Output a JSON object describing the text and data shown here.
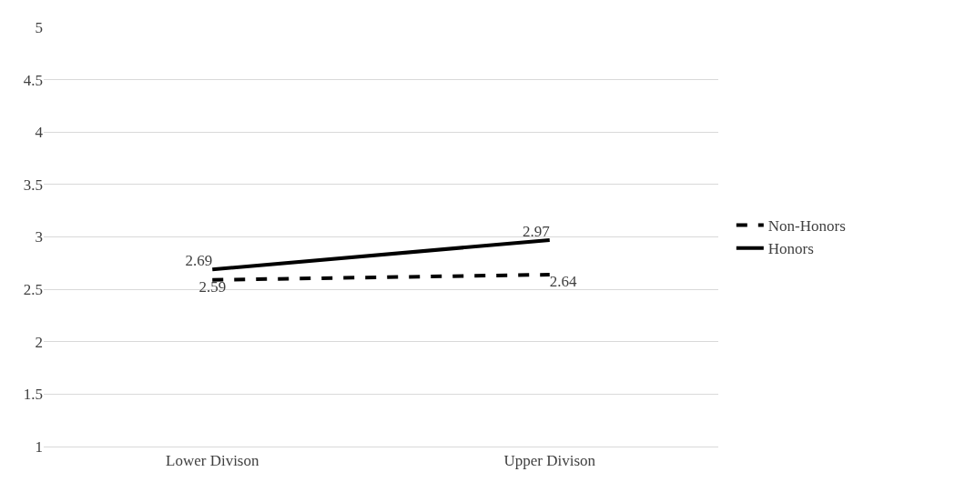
{
  "chart_data": {
    "type": "line",
    "categories": [
      "Lower Divison",
      "Upper Divison"
    ],
    "series": [
      {
        "name": "Non-Honors",
        "color": "#000000",
        "values": [
          2.59,
          2.64
        ],
        "line_style": "dashed"
      },
      {
        "name": "Honors",
        "color": "#000000",
        "values": [
          2.69,
          2.97
        ],
        "line_style": "solid"
      }
    ],
    "ylim": [
      1,
      5
    ],
    "yticks": [
      1,
      1.5,
      2,
      2.5,
      3,
      3.5,
      4,
      4.5,
      5
    ],
    "grid": "y",
    "legend": "right",
    "data_labels": true,
    "marker": "none"
  }
}
